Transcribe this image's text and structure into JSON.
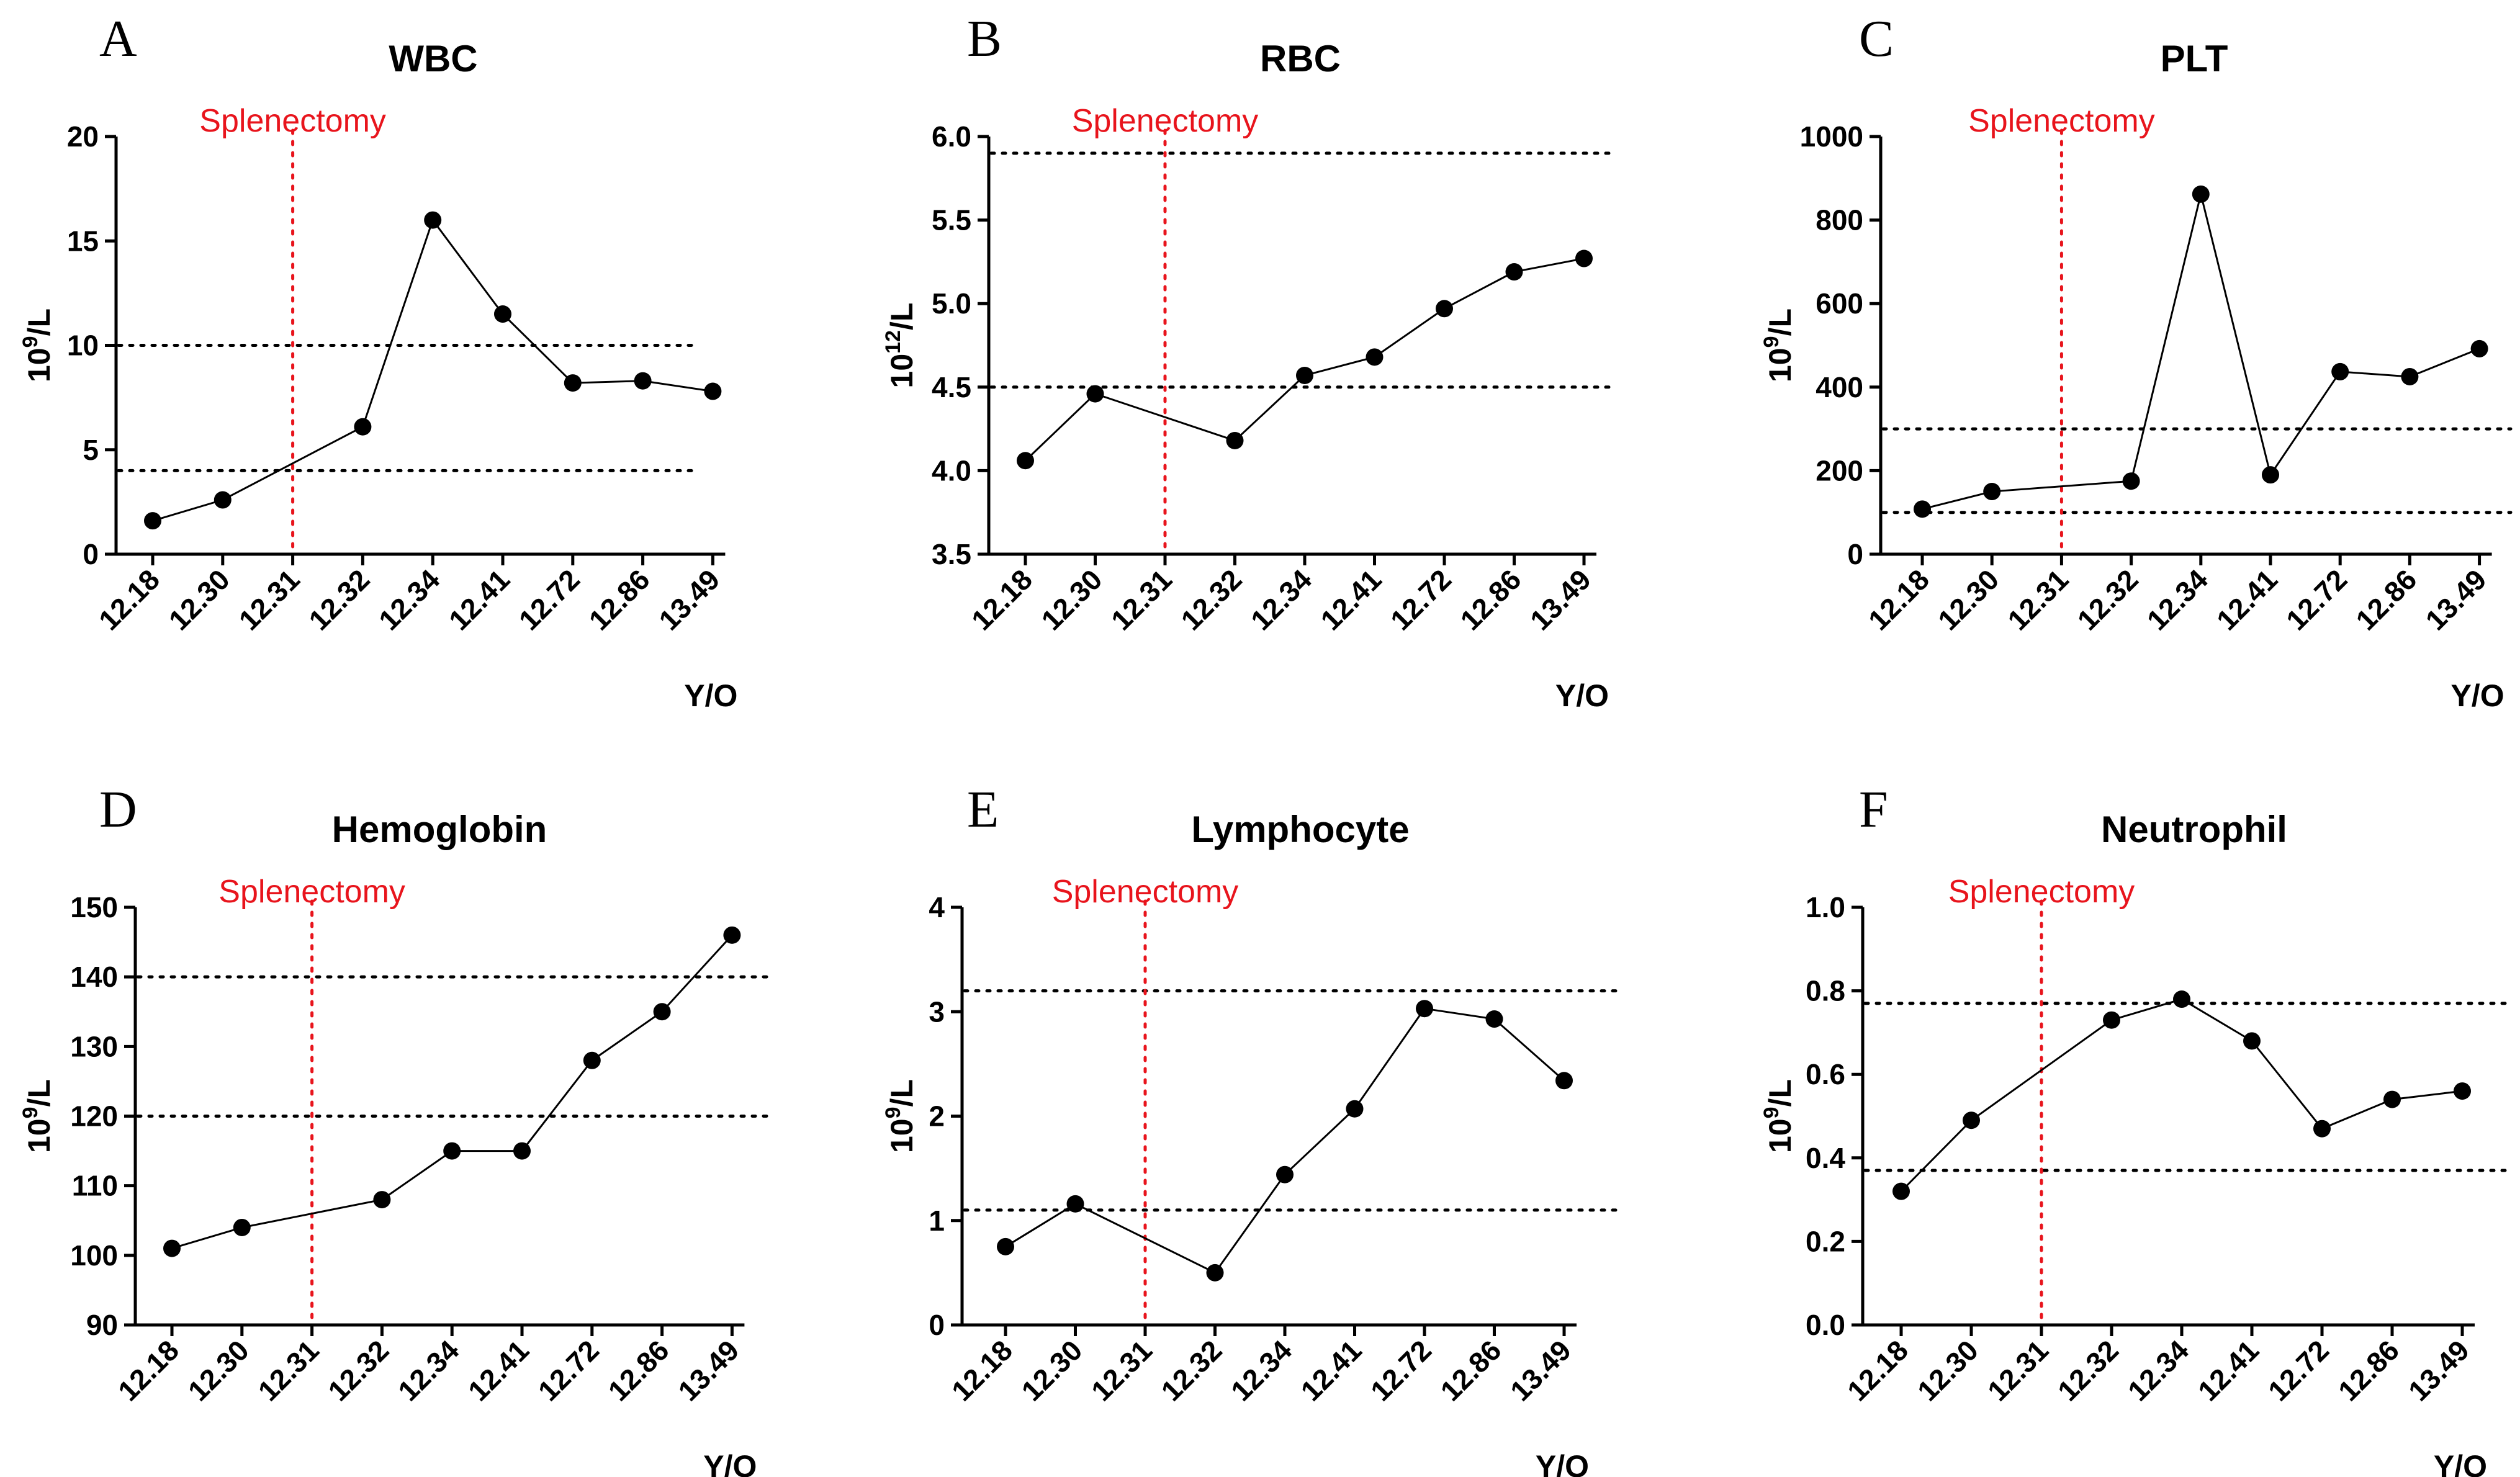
{
  "chart_data": [
    {
      "panel": "A",
      "type": "line",
      "title": "WBC",
      "ylabel": "10^9/L",
      "xlabel": "Y/O",
      "categories": [
        "12.18",
        "12.30",
        "12.31",
        "12.32",
        "12.34",
        "12.41",
        "12.72",
        "12.86",
        "13.49"
      ],
      "series": [
        {
          "name": "WBC",
          "x": [
            "12.18",
            "12.30",
            "12.32",
            "12.34",
            "12.41",
            "12.72",
            "12.86",
            "13.49"
          ],
          "values": [
            1.6,
            2.6,
            6.1,
            16.0,
            11.5,
            8.2,
            8.3,
            7.8
          ]
        }
      ],
      "ylim": [
        0,
        20
      ],
      "yticks": [
        0,
        5,
        10,
        15,
        20
      ],
      "reference_lines": [
        4,
        10
      ],
      "annotation": {
        "label": "Splenectomy",
        "x": "12.31",
        "color": "#e8141c"
      }
    },
    {
      "panel": "B",
      "type": "line",
      "title": "RBC",
      "ylabel": "10^12/L",
      "xlabel": "Y/O",
      "categories": [
        "12.18",
        "12.30",
        "12.31",
        "12.32",
        "12.34",
        "12.41",
        "12.72",
        "12.86",
        "13.49"
      ],
      "series": [
        {
          "name": "RBC",
          "x": [
            "12.18",
            "12.30",
            "12.32",
            "12.34",
            "12.41",
            "12.72",
            "12.86",
            "13.49"
          ],
          "values": [
            4.06,
            4.46,
            4.18,
            4.57,
            4.68,
            4.97,
            5.19,
            5.27
          ]
        }
      ],
      "ylim": [
        3.5,
        6.0
      ],
      "yticks": [
        3.5,
        4.0,
        4.5,
        5.0,
        5.5,
        6.0
      ],
      "reference_lines": [
        4.5,
        5.9
      ],
      "annotation": {
        "label": "Splenectomy",
        "x": "12.31",
        "color": "#e8141c"
      }
    },
    {
      "panel": "C",
      "type": "line",
      "title": "PLT",
      "ylabel": "10^9/L",
      "xlabel": "Y/O",
      "categories": [
        "12.18",
        "12.30",
        "12.31",
        "12.32",
        "12.34",
        "12.41",
        "12.72",
        "12.86",
        "13.49"
      ],
      "series": [
        {
          "name": "PLT",
          "x": [
            "12.18",
            "12.30",
            "12.32",
            "12.34",
            "12.41",
            "12.72",
            "12.86",
            "13.49"
          ],
          "values": [
            108,
            150,
            175,
            862,
            190,
            437,
            425,
            492
          ]
        }
      ],
      "ylim": [
        0,
        1000
      ],
      "yticks": [
        0,
        200,
        400,
        600,
        800,
        1000
      ],
      "reference_lines": [
        100,
        300
      ],
      "annotation": {
        "label": "Splenectomy",
        "x": "12.31",
        "color": "#e8141c"
      }
    },
    {
      "panel": "D",
      "type": "line",
      "title": "Hemoglobin",
      "ylabel": "10^9/L",
      "xlabel": "Y/O",
      "categories": [
        "12.18",
        "12.30",
        "12.31",
        "12.32",
        "12.34",
        "12.41",
        "12.72",
        "12.86",
        "13.49"
      ],
      "series": [
        {
          "name": "Hemoglobin",
          "x": [
            "12.18",
            "12.30",
            "12.32",
            "12.34",
            "12.41",
            "12.72",
            "12.86",
            "13.49"
          ],
          "values": [
            101,
            104,
            108,
            115,
            115,
            128,
            135,
            146
          ]
        }
      ],
      "ylim": [
        90,
        150
      ],
      "yticks": [
        90,
        100,
        110,
        120,
        130,
        140,
        150
      ],
      "reference_lines": [
        120,
        140
      ],
      "annotation": {
        "label": "Splenectomy",
        "x": "12.31",
        "color": "#e8141c"
      }
    },
    {
      "panel": "E",
      "type": "line",
      "title": "Lymphocyte",
      "ylabel": "10^9/L",
      "xlabel": "Y/O",
      "categories": [
        "12.18",
        "12.30",
        "12.31",
        "12.32",
        "12.34",
        "12.41",
        "12.72",
        "12.86",
        "13.49"
      ],
      "series": [
        {
          "name": "Lymphocyte",
          "x": [
            "12.18",
            "12.30",
            "12.32",
            "12.34",
            "12.41",
            "12.72",
            "12.86",
            "13.49"
          ],
          "values": [
            0.75,
            1.16,
            0.5,
            1.44,
            2.07,
            3.03,
            2.93,
            2.34
          ]
        }
      ],
      "ylim": [
        0,
        4
      ],
      "yticks": [
        0,
        1,
        2,
        3,
        4
      ],
      "reference_lines": [
        1.1,
        3.2
      ],
      "annotation": {
        "label": "Splenectomy",
        "x": "12.31",
        "color": "#e8141c"
      }
    },
    {
      "panel": "F",
      "type": "line",
      "title": "Neutrophil",
      "ylabel": "10^9/L",
      "xlabel": "Y/O",
      "categories": [
        "12.18",
        "12.30",
        "12.31",
        "12.32",
        "12.34",
        "12.41",
        "12.72",
        "12.86",
        "13.49"
      ],
      "series": [
        {
          "name": "Neutrophil",
          "x": [
            "12.18",
            "12.30",
            "12.32",
            "12.34",
            "12.41",
            "12.72",
            "12.86",
            "13.49"
          ],
          "values": [
            0.32,
            0.49,
            0.73,
            0.78,
            0.68,
            0.47,
            0.54,
            0.56
          ]
        }
      ],
      "ylim": [
        0,
        1.0
      ],
      "yticks": [
        0.0,
        0.2,
        0.4,
        0.6,
        0.8,
        1.0
      ],
      "reference_lines": [
        0.37,
        0.77
      ],
      "annotation": {
        "label": "Splenectomy",
        "x": "12.31",
        "color": "#e8141c"
      }
    }
  ]
}
